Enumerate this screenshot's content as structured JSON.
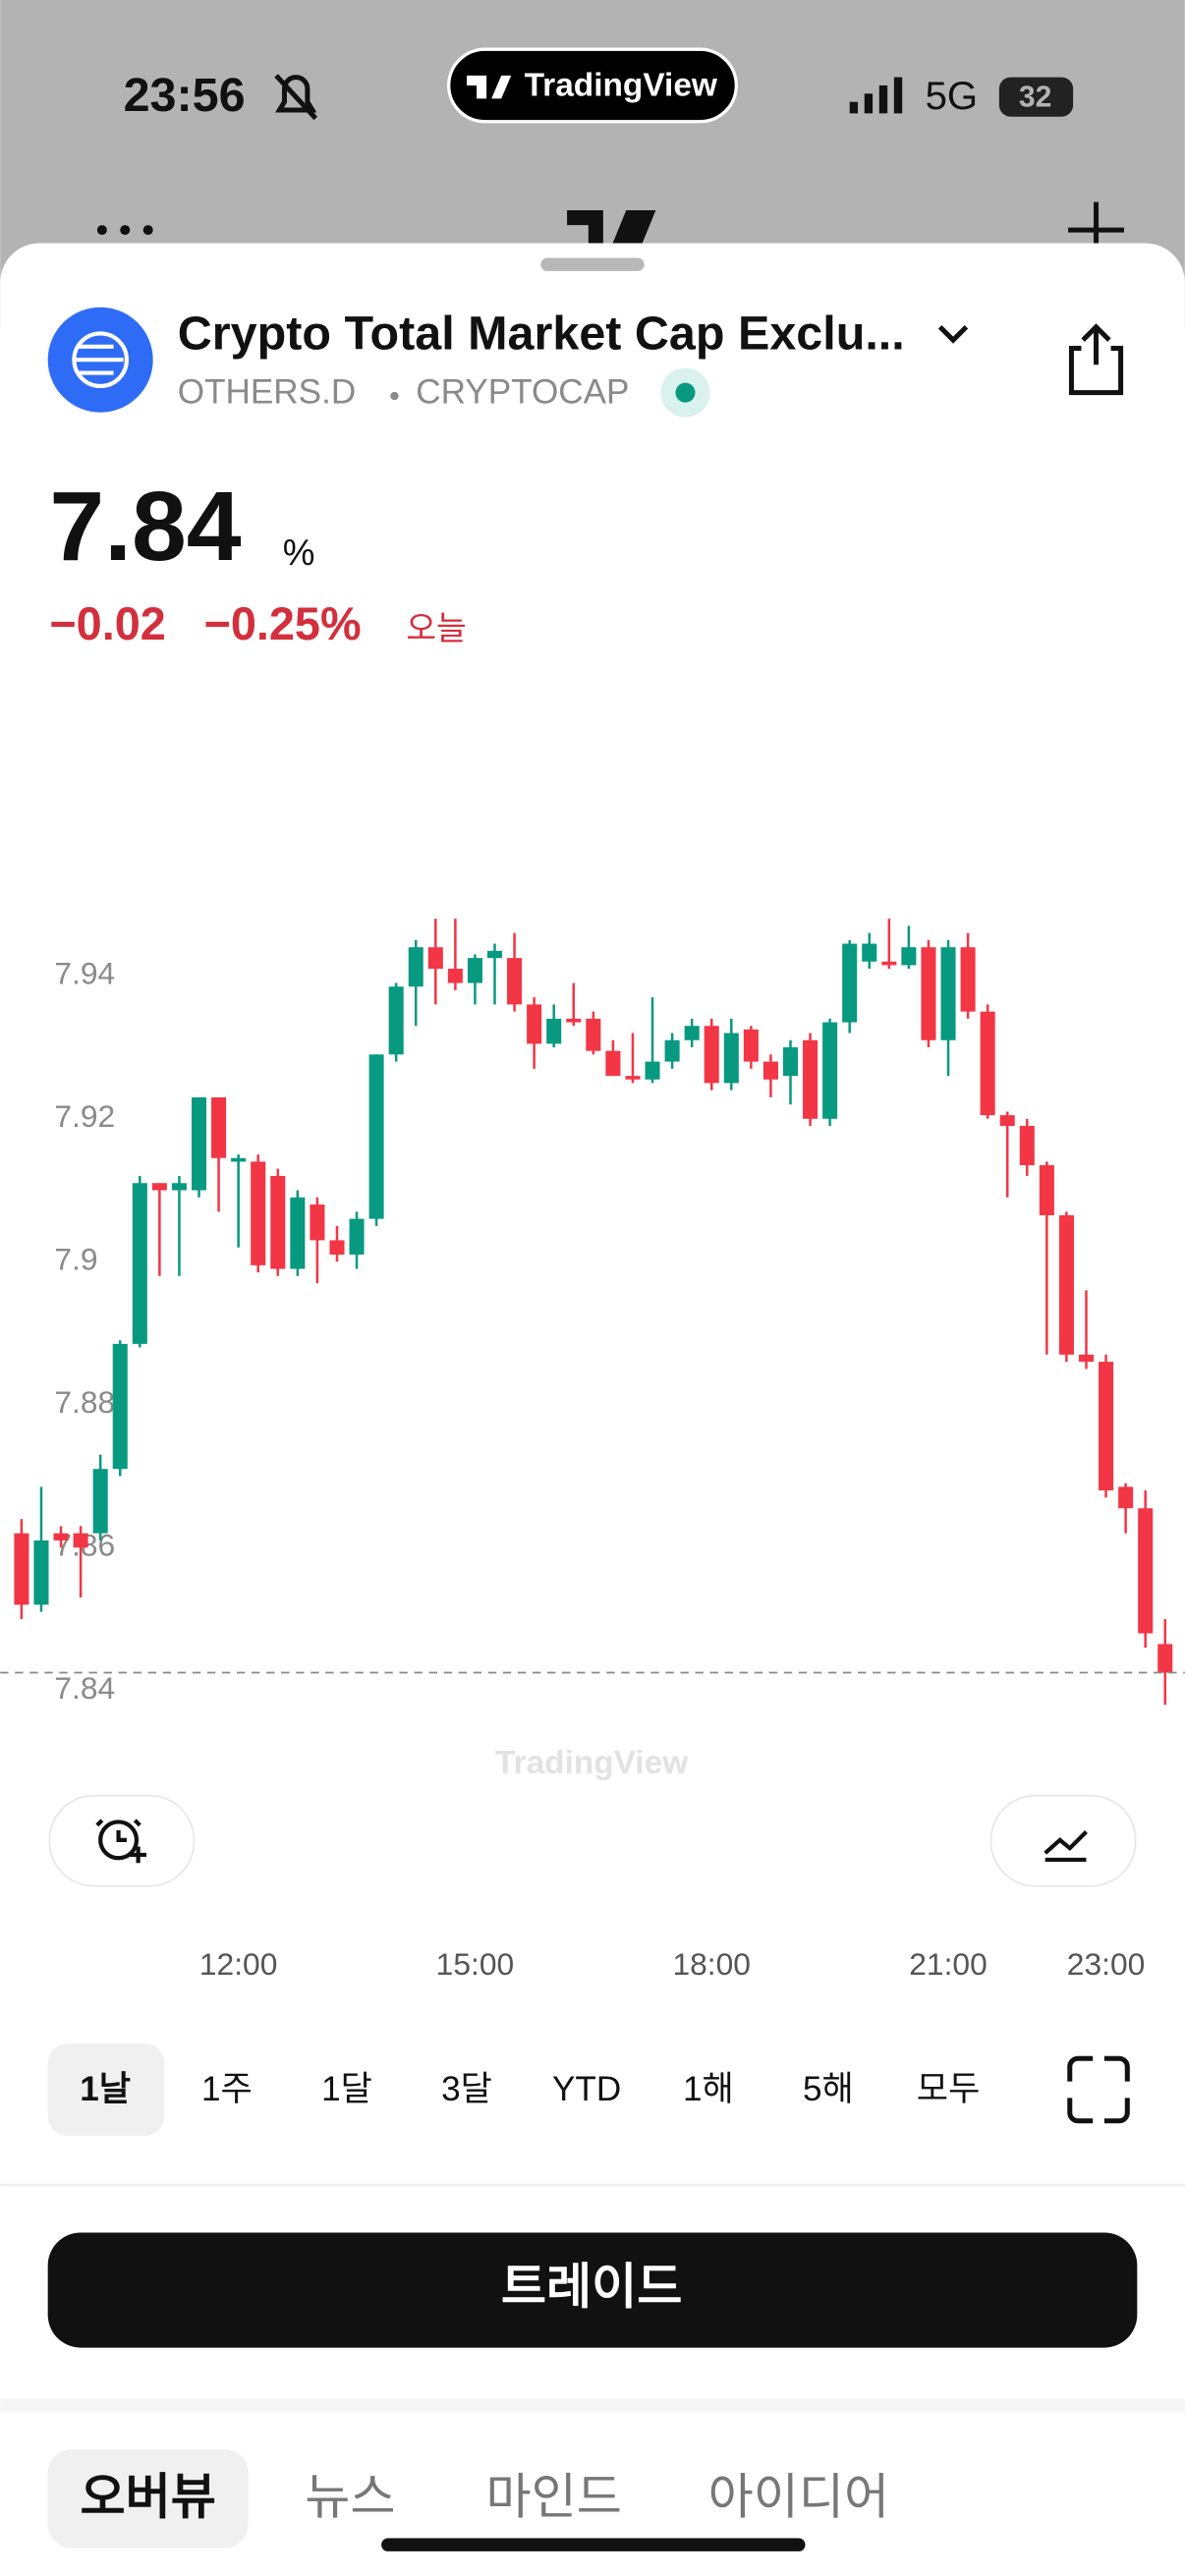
{
  "status_bar": {
    "time": "23:56",
    "app": "TradingView",
    "network": "5G",
    "battery": "32"
  },
  "header": {
    "title": "Crypto Total Market Cap Exclu...",
    "symbol": "OTHERS.D",
    "exchange": "CRYPTOCAP"
  },
  "quote": {
    "price": "7.84",
    "unit": "%",
    "change": "−0.02",
    "change_percent": "−0.25%",
    "period": "오늘"
  },
  "chart_data": {
    "type": "candlestick",
    "watermark": "TradingView",
    "categories": [
      null,
      null,
      null,
      null,
      null,
      null,
      null,
      null,
      null,
      null,
      null,
      "12:00",
      null,
      null,
      null,
      null,
      null,
      null,
      null,
      null,
      null,
      null,
      null,
      "15:00",
      null,
      null,
      null,
      null,
      null,
      null,
      null,
      null,
      null,
      null,
      null,
      "18:00",
      null,
      null,
      null,
      null,
      null,
      null,
      null,
      null,
      null,
      null,
      null,
      "21:00",
      null,
      null,
      null,
      null,
      null,
      null,
      null,
      "23:00",
      null,
      null,
      null
    ],
    "open": [
      7.862,
      7.852,
      7.862,
      7.862,
      7.862,
      7.871,
      7.8885,
      7.911,
      7.91,
      7.91,
      7.923,
      7.914,
      7.914,
      7.912,
      7.899,
      7.908,
      7.903,
      7.901,
      7.906,
      7.929,
      7.9385,
      7.944,
      7.941,
      7.939,
      7.9425,
      7.9425,
      7.936,
      7.9305,
      7.934,
      7.934,
      7.9295,
      7.926,
      7.9255,
      7.928,
      7.931,
      7.933,
      7.925,
      7.9325,
      7.928,
      7.926,
      7.931,
      7.92,
      7.9335,
      7.942,
      7.942,
      7.9415,
      7.944,
      7.931,
      7.944,
      7.935,
      7.9205,
      7.919,
      7.9135,
      7.9065,
      7.887,
      7.886,
      7.8685,
      7.8655,
      7.8465
    ],
    "high": [
      7.864,
      7.8685,
      7.863,
      7.863,
      7.873,
      7.889,
      7.912,
      7.911,
      7.912,
      7.923,
      7.923,
      7.915,
      7.915,
      7.913,
      7.91,
      7.909,
      7.905,
      7.907,
      7.929,
      7.939,
      7.945,
      7.948,
      7.948,
      7.943,
      7.9445,
      7.946,
      7.937,
      7.936,
      7.939,
      7.935,
      7.931,
      7.932,
      7.937,
      7.932,
      7.934,
      7.934,
      7.934,
      7.933,
      7.929,
      7.931,
      7.932,
      7.934,
      7.945,
      7.946,
      7.948,
      7.947,
      7.945,
      7.945,
      7.946,
      7.936,
      7.921,
      7.92,
      7.914,
      7.907,
      7.896,
      7.887,
      7.869,
      7.868,
      7.85
    ],
    "low": [
      7.85,
      7.851,
      7.86,
      7.853,
      7.861,
      7.87,
      7.888,
      7.898,
      7.898,
      7.909,
      7.907,
      7.902,
      7.8985,
      7.898,
      7.898,
      7.897,
      7.9,
      7.899,
      7.905,
      7.928,
      7.933,
      7.936,
      7.938,
      7.936,
      7.936,
      7.935,
      7.927,
      7.93,
      7.933,
      7.929,
      7.926,
      7.925,
      7.925,
      7.927,
      7.93,
      7.924,
      7.924,
      7.927,
      7.923,
      7.922,
      7.919,
      7.919,
      7.932,
      7.941,
      7.941,
      7.941,
      7.93,
      7.926,
      7.934,
      7.92,
      7.909,
      7.912,
      7.887,
      7.886,
      7.885,
      7.867,
      7.862,
      7.846,
      7.838
    ],
    "close": [
      7.852,
      7.861,
      7.861,
      7.86,
      7.871,
      7.8885,
      7.911,
      7.91,
      7.911,
      7.923,
      7.9145,
      7.9145,
      7.8995,
      7.899,
      7.909,
      7.903,
      7.901,
      7.906,
      7.929,
      7.9385,
      7.944,
      7.941,
      7.939,
      7.9425,
      7.9435,
      7.936,
      7.9305,
      7.934,
      7.9335,
      7.9295,
      7.926,
      7.9255,
      7.928,
      7.931,
      7.933,
      7.925,
      7.932,
      7.928,
      7.9255,
      7.93,
      7.92,
      7.9335,
      7.9445,
      7.9445,
      7.9415,
      7.944,
      7.931,
      7.944,
      7.935,
      7.9205,
      7.919,
      7.9135,
      7.9065,
      7.887,
      7.886,
      7.868,
      7.8655,
      7.848,
      7.8425
    ],
    "up_color": "#089981",
    "down_color": "#f23645",
    "ylim": [
      7.832,
      7.97
    ],
    "yticks": [
      7.84,
      7.86,
      7.88,
      7.9,
      7.92,
      7.94
    ],
    "grid": false,
    "last_price_line": true
  },
  "ranges": {
    "items": [
      "1날",
      "1주",
      "1달",
      "3달",
      "YTD",
      "1해",
      "5해",
      "모두"
    ],
    "selected": 0
  },
  "trade_button": "트레이드",
  "tabs": {
    "items": [
      "오버뷰",
      "뉴스",
      "마인드",
      "아이디어"
    ],
    "selected": 0
  }
}
